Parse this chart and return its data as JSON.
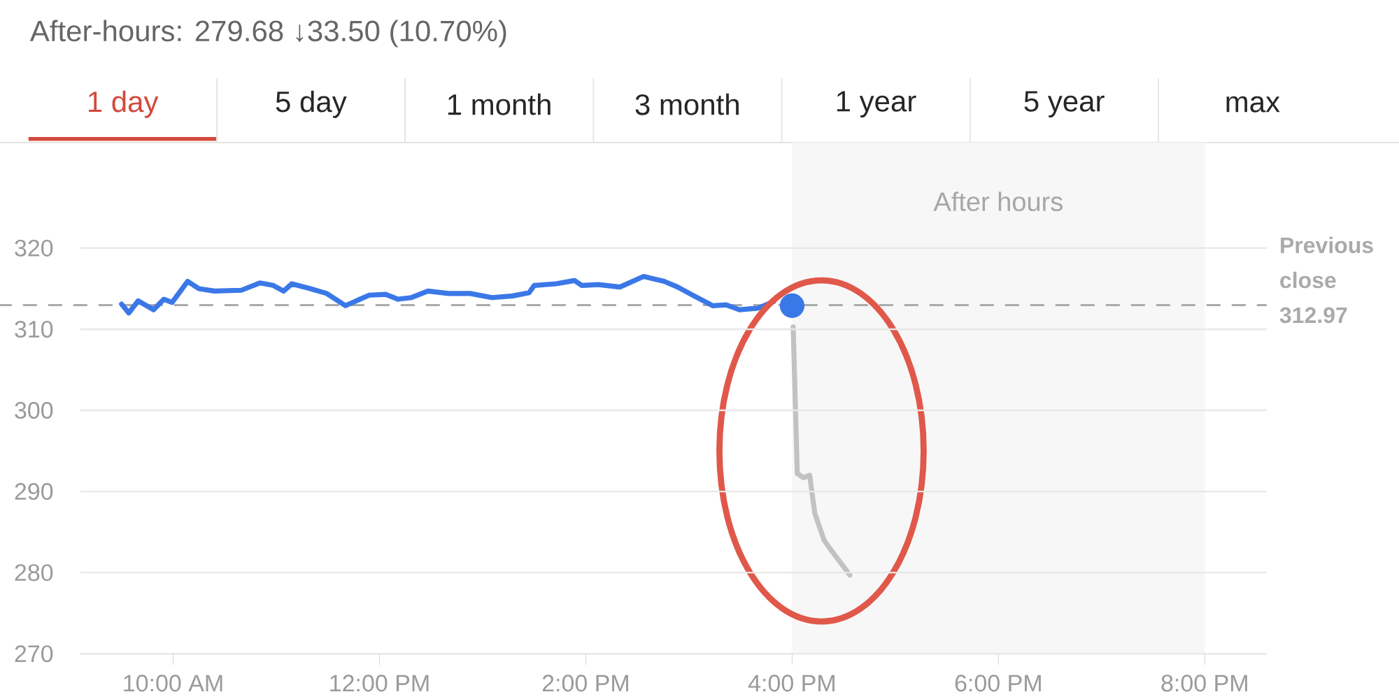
{
  "chart_data": {
    "type": "line",
    "subtitle": "After-hours: 279.68 ↓33.50 (10.70%)",
    "annotations": [
      "1 day",
      "5 day",
      "1 month",
      "3 month",
      "1 year",
      "5 year",
      "max"
    ],
    "series": [
      {
        "color": "#3b78e7",
        "x": [
          9.5,
          9.57,
          9.66,
          9.81,
          9.91,
          9.99,
          10.14,
          10.25,
          10.4,
          10.66,
          10.84,
          10.97,
          11.07,
          11.15,
          11.33,
          11.49,
          11.67,
          11.9,
          12.06,
          12.18,
          12.31,
          12.47,
          12.67,
          12.88,
          13.09,
          13.29,
          13.45,
          13.5,
          13.71,
          13.89,
          13.96,
          14.12,
          14.33,
          14.56,
          14.76,
          14.89,
          15.05,
          15.23,
          15.36,
          15.49,
          15.67,
          15.82
        ],
        "values": [
          313.1,
          312.0,
          313.5,
          312.4,
          313.7,
          313.3,
          315.9,
          315.0,
          314.7,
          314.8,
          315.7,
          315.4,
          314.7,
          315.6,
          315.0,
          314.4,
          312.9,
          314.2,
          314.3,
          313.7,
          313.9,
          314.7,
          314.4,
          314.4,
          313.9,
          314.1,
          314.5,
          315.4,
          315.6,
          316.0,
          315.4,
          315.5,
          315.2,
          316.5,
          315.9,
          315.2,
          314.1,
          312.9,
          313.0,
          312.4,
          312.6,
          313.4
        ]
      },
      {
        "color": "#c2c2c2",
        "x": [
          16.01,
          16.05,
          16.11,
          16.17,
          16.22,
          16.31,
          16.37,
          16.56
        ],
        "values": [
          310.3,
          292.2,
          291.7,
          292.0,
          287.3,
          284.0,
          282.9,
          279.7
        ]
      },
      {
        "type": "scatter",
        "marker": "circle",
        "color": "#3b78e7",
        "x": [
          16.0
        ],
        "values": [
          312.9
        ]
      }
    ],
    "xlim": [
      9.1,
      20.6
    ],
    "ylim": [
      270,
      333
    ],
    "xticks": [
      {
        "value": 10,
        "label": "10:00 AM"
      },
      {
        "value": 12,
        "label": "12:00 PM"
      },
      {
        "value": 14,
        "label": "2:00 PM"
      },
      {
        "value": 16,
        "label": "4:00 PM"
      },
      {
        "value": 18,
        "label": "6:00 PM"
      },
      {
        "value": 20,
        "label": "8:00 PM"
      }
    ],
    "yticks": [
      270,
      280,
      290,
      300,
      310,
      320
    ],
    "grid": "y",
    "ref_lines": [
      {
        "axis": "y",
        "value": 312.97,
        "label": "Previous close 312.97",
        "color": "#aaaaaa",
        "line_style": "dashed"
      }
    ],
    "bands": [
      {
        "axis": "x",
        "from": 16,
        "to": 20,
        "label": "After hours",
        "color": "#f7f7f7"
      }
    ]
  }
}
